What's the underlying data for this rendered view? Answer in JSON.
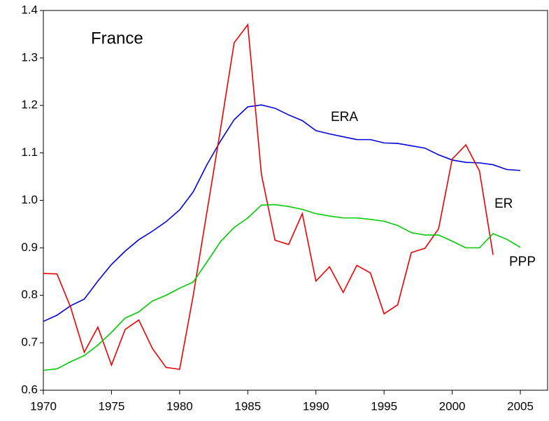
{
  "chart_data": {
    "type": "line",
    "title": "France",
    "x": [
      1970,
      1971,
      1972,
      1973,
      1974,
      1975,
      1976,
      1977,
      1978,
      1979,
      1980,
      1981,
      1982,
      1983,
      1984,
      1985,
      1986,
      1987,
      1988,
      1989,
      1990,
      1991,
      1992,
      1993,
      1994,
      1995,
      1996,
      1997,
      1998,
      1999,
      2000,
      2001,
      2002,
      2003,
      2004,
      2005
    ],
    "series": [
      {
        "name": "ERA",
        "color": "#0000dd",
        "values": [
          0.745,
          0.758,
          0.778,
          0.792,
          0.83,
          0.865,
          0.893,
          0.917,
          0.935,
          0.955,
          0.98,
          1.018,
          1.075,
          1.125,
          1.17,
          1.197,
          1.201,
          1.194,
          1.18,
          1.168,
          1.147,
          1.14,
          1.134,
          1.128,
          1.128,
          1.121,
          1.12,
          1.115,
          1.11,
          1.096,
          1.085,
          1.08,
          1.079,
          1.075,
          1.065,
          1.063
        ]
      },
      {
        "name": "ER",
        "color": "#ee0000",
        "values": [
          0.846,
          0.845,
          0.775,
          0.68,
          0.733,
          0.653,
          0.728,
          0.748,
          0.688,
          0.648,
          0.644,
          0.8,
          0.975,
          1.15,
          1.332,
          1.37,
          1.055,
          0.916,
          0.907,
          0.972,
          0.83,
          0.86,
          0.806,
          0.863,
          0.847,
          0.761,
          0.78,
          0.89,
          0.899,
          0.94,
          1.087,
          1.117,
          1.062,
          0.885,
          null,
          null
        ]
      },
      {
        "name": "PPP",
        "color": "#00cc00",
        "values": [
          0.642,
          0.645,
          0.66,
          0.673,
          0.695,
          0.722,
          0.752,
          0.765,
          0.788,
          0.8,
          0.815,
          0.828,
          0.87,
          0.913,
          0.943,
          0.963,
          0.99,
          0.991,
          0.987,
          0.981,
          0.972,
          0.967,
          0.963,
          0.963,
          0.96,
          0.956,
          0.947,
          0.932,
          0.927,
          0.927,
          0.914,
          0.9,
          0.9,
          0.93,
          0.918,
          0.901
        ]
      }
    ],
    "xlim": [
      1970,
      2007
    ],
    "xticks": [
      1970,
      1975,
      1980,
      1985,
      1990,
      1995,
      2000,
      2005
    ],
    "ylim": [
      0.6,
      1.4
    ],
    "yticks": [
      0.6,
      0.7,
      0.8,
      0.9,
      {
        "value": 1,
        "label": "1.0"
      },
      1.1,
      1.2,
      1.3,
      1.4
    ]
  }
}
